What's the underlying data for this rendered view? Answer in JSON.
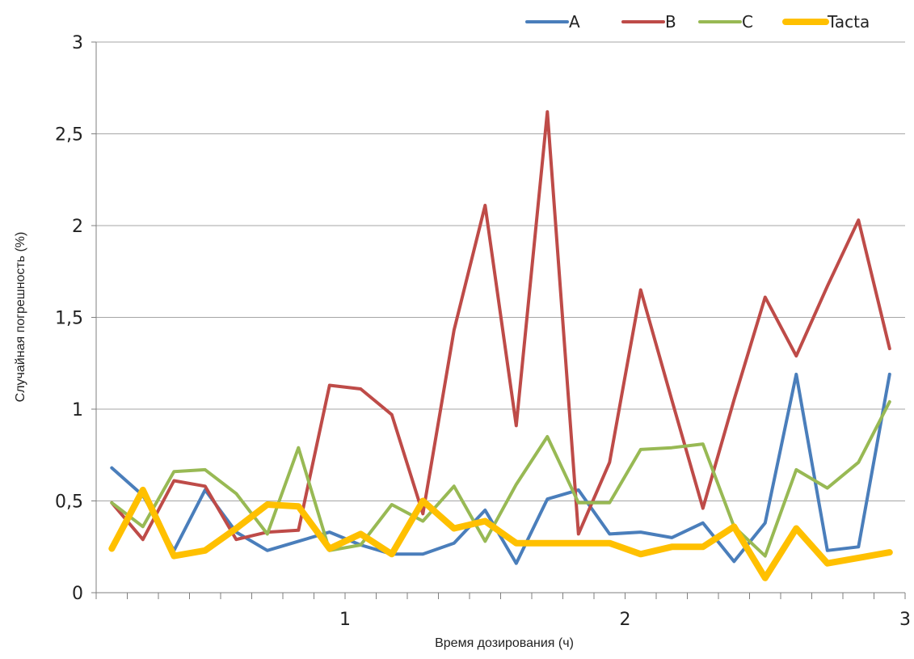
{
  "chart_data": {
    "type": "line",
    "xlabel": "Время дозирования (ч)",
    "ylabel": "Случайная погрешность (%)",
    "ylim": [
      0,
      3
    ],
    "y_ticks": [
      "0",
      "0,5",
      "1",
      "1,5",
      "2",
      "2,5",
      "3"
    ],
    "x_ticks": [
      {
        "label": "1",
        "index": 7.5
      },
      {
        "label": "2",
        "index": 16.5
      },
      {
        "label": "3",
        "index": 25.5
      }
    ],
    "grid": true,
    "legend_position": "top-right",
    "n_points": 26,
    "series": [
      {
        "name": "A",
        "color": "#4a7ebb",
        "values": [
          0.68,
          0.53,
          0.23,
          0.56,
          0.33,
          0.23,
          0.28,
          0.33,
          0.26,
          0.21,
          0.21,
          0.27,
          0.45,
          0.16,
          0.51,
          0.56,
          0.32,
          0.33,
          0.3,
          0.38,
          0.17,
          0.38,
          1.19,
          0.23,
          0.25,
          1.19
        ]
      },
      {
        "name": "B",
        "color": "#be4b48",
        "values": [
          0.49,
          0.29,
          0.61,
          0.58,
          0.29,
          0.33,
          0.34,
          1.13,
          1.11,
          0.97,
          0.43,
          1.43,
          2.11,
          0.91,
          2.62,
          0.32,
          0.71,
          1.65,
          1.05,
          0.46,
          1.05,
          1.61,
          1.29,
          1.67,
          2.03,
          1.33
        ]
      },
      {
        "name": "C",
        "color": "#98b954",
        "values": [
          0.49,
          0.36,
          0.66,
          0.67,
          0.54,
          0.32,
          0.79,
          0.23,
          0.26,
          0.48,
          0.39,
          0.58,
          0.28,
          0.59,
          0.85,
          0.49,
          0.49,
          0.78,
          0.79,
          0.81,
          0.36,
          0.2,
          0.67,
          0.57,
          0.71,
          1.04
        ]
      },
      {
        "name": "Tacta",
        "color": "#ffc000",
        "values": [
          0.24,
          0.56,
          0.2,
          0.23,
          0.35,
          0.48,
          0.47,
          0.24,
          0.32,
          0.21,
          0.5,
          0.35,
          0.39,
          0.27,
          0.27,
          0.27,
          0.27,
          0.21,
          0.25,
          0.25,
          0.36,
          0.08,
          0.35,
          0.16,
          0.19,
          0.22
        ]
      }
    ]
  }
}
